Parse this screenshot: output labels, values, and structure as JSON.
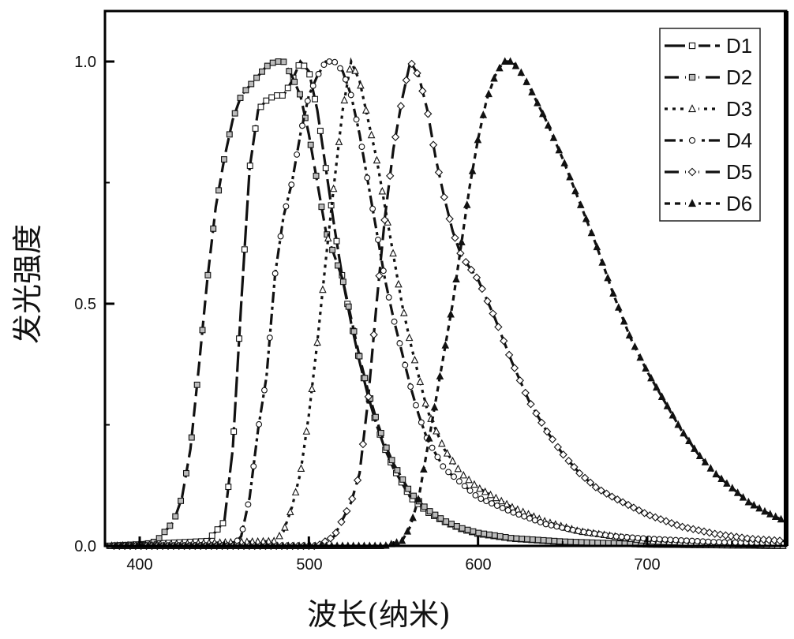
{
  "chart_data": {
    "type": "line",
    "title": "",
    "xlabel": "波长(纳米)",
    "ylabel": "发光强度",
    "xlim": [
      380,
      782
    ],
    "ylim": [
      0,
      1.1
    ],
    "xticks": [
      400,
      500,
      600,
      700
    ],
    "yticks": [
      0.0,
      0.5,
      1.0
    ],
    "xtick_labels": [
      "400",
      "500",
      "600",
      "700"
    ],
    "ytick_labels": [
      "0.0",
      "0.5",
      "1.0"
    ],
    "grid": false,
    "legend_position": "top-right",
    "series": [
      {
        "name": "D1",
        "marker": "open-square",
        "line": "long-dash",
        "x": [
          380,
          440,
          450,
          455,
          460,
          465,
          470,
          475,
          480,
          485,
          490,
          495,
          500,
          505,
          510,
          515,
          520,
          525,
          530,
          535,
          540,
          545,
          550,
          555,
          560,
          570,
          580,
          590,
          600,
          620,
          650,
          700,
          782
        ],
        "y": [
          0,
          0.01,
          0.05,
          0.2,
          0.5,
          0.78,
          0.9,
          0.92,
          0.93,
          0.93,
          0.96,
          1.0,
          0.98,
          0.9,
          0.78,
          0.66,
          0.55,
          0.46,
          0.38,
          0.31,
          0.25,
          0.2,
          0.16,
          0.13,
          0.1,
          0.07,
          0.05,
          0.035,
          0.025,
          0.015,
          0.008,
          0.003,
          0
        ]
      },
      {
        "name": "D2",
        "marker": "crossed-square",
        "line": "dash",
        "x": [
          380,
          400,
          410,
          420,
          425,
          430,
          435,
          440,
          445,
          450,
          455,
          460,
          470,
          475,
          480,
          485,
          490,
          495,
          500,
          505,
          510,
          515,
          520,
          525,
          530,
          535,
          540,
          545,
          550,
          555,
          560,
          570,
          580,
          590,
          600,
          620,
          650,
          700,
          782
        ],
        "y": [
          0,
          0,
          0.01,
          0.05,
          0.1,
          0.2,
          0.37,
          0.55,
          0.7,
          0.8,
          0.88,
          0.93,
          0.97,
          0.99,
          1.0,
          1.0,
          0.97,
          0.93,
          0.85,
          0.75,
          0.65,
          0.6,
          0.55,
          0.47,
          0.39,
          0.32,
          0.26,
          0.21,
          0.17,
          0.14,
          0.11,
          0.075,
          0.052,
          0.037,
          0.027,
          0.016,
          0.009,
          0.003,
          0
        ]
      },
      {
        "name": "D3",
        "marker": "open-triangle",
        "line": "dotted",
        "x": [
          380,
          480,
          485,
          490,
          495,
          500,
          505,
          510,
          515,
          520,
          525,
          530,
          535,
          540,
          545,
          550,
          555,
          560,
          565,
          570,
          580,
          590,
          600,
          620,
          640,
          660,
          680,
          700,
          740,
          782
        ],
        "y": [
          0,
          0.01,
          0.03,
          0.08,
          0.15,
          0.27,
          0.42,
          0.59,
          0.75,
          0.9,
          1.0,
          0.96,
          0.88,
          0.8,
          0.7,
          0.6,
          0.5,
          0.42,
          0.35,
          0.28,
          0.2,
          0.15,
          0.12,
          0.08,
          0.05,
          0.03,
          0.02,
          0.01,
          0.005,
          0
        ]
      },
      {
        "name": "D4",
        "marker": "open-circle",
        "line": "dash-dot",
        "x": [
          380,
          455,
          460,
          465,
          470,
          475,
          480,
          485,
          490,
          495,
          500,
          505,
          510,
          515,
          520,
          525,
          530,
          535,
          540,
          545,
          550,
          555,
          560,
          565,
          570,
          580,
          590,
          600,
          620,
          640,
          660,
          680,
          700,
          740,
          782
        ],
        "y": [
          0,
          0,
          0.02,
          0.1,
          0.24,
          0.35,
          0.56,
          0.68,
          0.75,
          0.85,
          0.93,
          0.97,
          1.0,
          1.0,
          0.98,
          0.93,
          0.85,
          0.75,
          0.65,
          0.55,
          0.47,
          0.4,
          0.33,
          0.27,
          0.22,
          0.16,
          0.13,
          0.1,
          0.07,
          0.045,
          0.03,
          0.02,
          0.015,
          0.008,
          0.005
        ]
      },
      {
        "name": "D5",
        "marker": "open-diamond",
        "line": "dash",
        "x": [
          380,
          505,
          515,
          525,
          530,
          535,
          540,
          545,
          550,
          555,
          560,
          565,
          570,
          575,
          580,
          585,
          590,
          600,
          610,
          620,
          630,
          640,
          650,
          660,
          670,
          680,
          700,
          720,
          740,
          760,
          782
        ],
        "y": [
          0,
          0,
          0.02,
          0.09,
          0.15,
          0.3,
          0.5,
          0.68,
          0.82,
          0.92,
          1.0,
          0.97,
          0.9,
          0.8,
          0.72,
          0.65,
          0.6,
          0.55,
          0.47,
          0.38,
          0.3,
          0.24,
          0.19,
          0.15,
          0.12,
          0.1,
          0.065,
          0.04,
          0.025,
          0.015,
          0.01
        ]
      },
      {
        "name": "D6",
        "marker": "filled-triangle",
        "line": "short-dash",
        "x": [
          380,
          545,
          555,
          560,
          565,
          570,
          575,
          580,
          585,
          590,
          595,
          600,
          605,
          610,
          615,
          620,
          625,
          630,
          640,
          650,
          660,
          670,
          680,
          690,
          700,
          710,
          720,
          730,
          740,
          750,
          760,
          770,
          782
        ],
        "y": [
          0,
          0,
          0.01,
          0.04,
          0.1,
          0.2,
          0.3,
          0.4,
          0.5,
          0.62,
          0.74,
          0.84,
          0.92,
          0.97,
          1.0,
          1.0,
          0.98,
          0.95,
          0.88,
          0.8,
          0.71,
          0.62,
          0.52,
          0.43,
          0.36,
          0.3,
          0.24,
          0.19,
          0.15,
          0.12,
          0.09,
          0.07,
          0.05
        ]
      }
    ]
  }
}
